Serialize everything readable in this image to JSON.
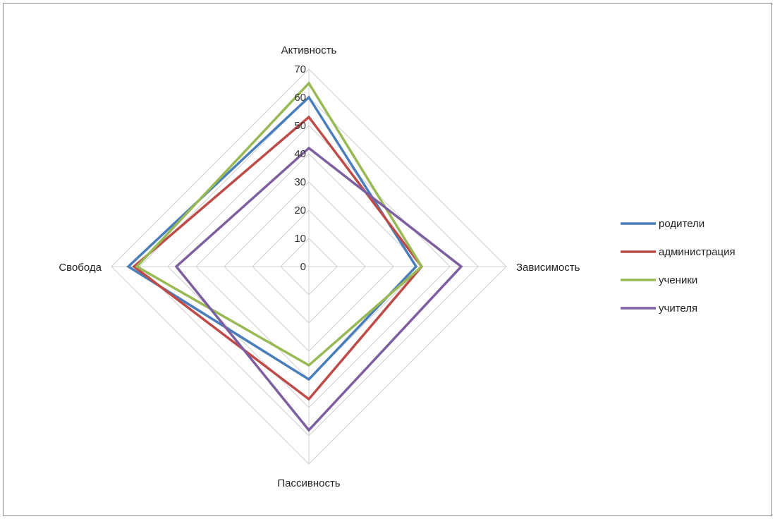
{
  "chart_data": {
    "type": "radar",
    "axes": [
      "Активность",
      "Зависимость",
      "Пассивность",
      "Свобода"
    ],
    "r_ticks": [
      0,
      10,
      20,
      30,
      40,
      50,
      60,
      70
    ],
    "rlim": [
      0,
      70
    ],
    "grid": true,
    "legend_position": "right",
    "series": [
      {
        "name": "родители",
        "color": "#4a7ebb",
        "values": [
          60,
          38,
          40,
          64
        ]
      },
      {
        "name": "администрация",
        "color": "#be4b48",
        "values": [
          53,
          40,
          47,
          62
        ]
      },
      {
        "name": "ученики",
        "color": "#98b954",
        "values": [
          65,
          40,
          35,
          61
        ]
      },
      {
        "name": "учителя",
        "color": "#7d5fa0",
        "values": [
          42,
          54,
          58,
          47
        ]
      }
    ]
  }
}
